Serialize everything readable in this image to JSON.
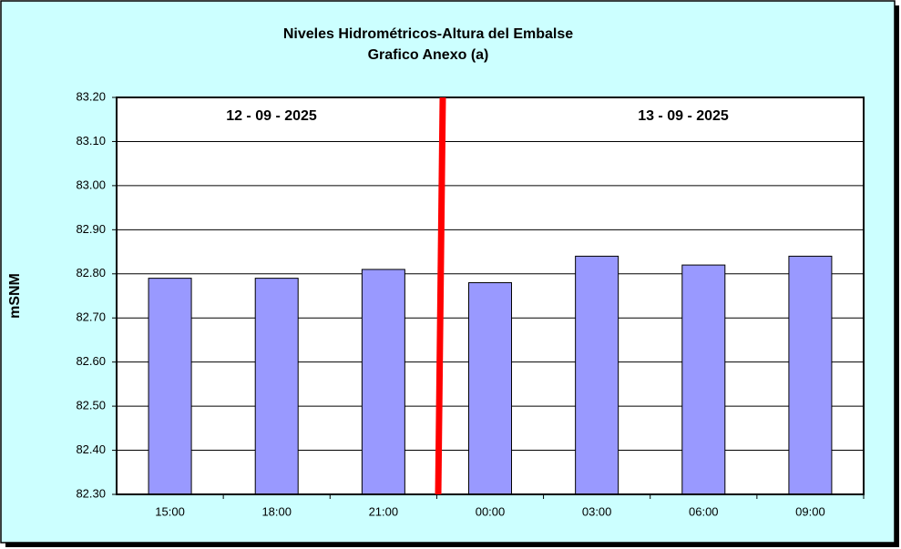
{
  "chart_data": {
    "type": "bar",
    "title": [
      "Niveles Hidrométricos-Altura del Embalse",
      "Grafico Anexo (a)"
    ],
    "y_label": "mSNM",
    "annotations": [
      "12 - 09 - 2025",
      "13 - 09 - 2025"
    ],
    "categories": [
      "15:00",
      "18:00",
      "21:00",
      "00:00",
      "03:00",
      "06:00",
      "09:00"
    ],
    "values": [
      82.79,
      82.79,
      82.81,
      82.78,
      82.84,
      82.82,
      82.84
    ],
    "color": "#9999ff",
    "ylim": [
      82.3,
      83.2
    ],
    "yticks": [
      {
        "value": 82.3,
        "label": "82.30"
      },
      {
        "value": 82.4,
        "label": "82.40"
      },
      {
        "value": 82.5,
        "label": "82.50"
      },
      {
        "value": 82.6,
        "label": "82.60"
      },
      {
        "value": 82.7,
        "label": "82.70"
      },
      {
        "value": 82.8,
        "label": "82.80"
      },
      {
        "value": 82.9,
        "label": "82.90"
      },
      {
        "value": 83.0,
        "label": "83.00"
      },
      {
        "value": 83.1,
        "label": "83.10"
      },
      {
        "value": 83.2,
        "label": "83.20"
      }
    ],
    "grid": true
  }
}
